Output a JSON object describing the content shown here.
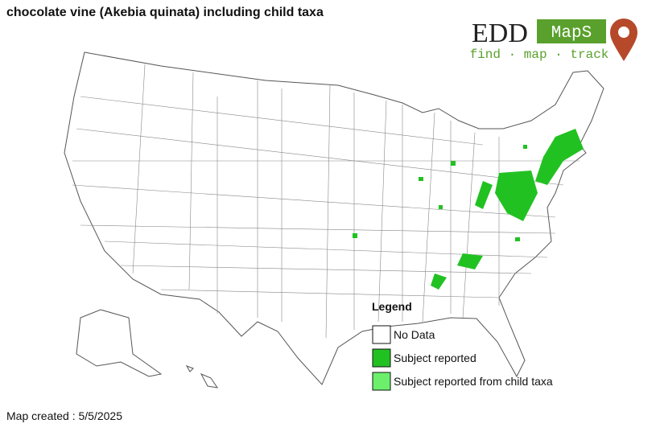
{
  "header": {
    "title": "chocolate vine (Akebia quinata) including child taxa"
  },
  "logo": {
    "name_left": "EDD",
    "name_right": "MapS",
    "tagline": "find · map · track"
  },
  "legend": {
    "title": "Legend",
    "items": [
      {
        "label": "No Data",
        "color": "#ffffff"
      },
      {
        "label": "Subject reported",
        "color": "#22c122"
      },
      {
        "label": "Subject reported from child taxa",
        "color": "#6cf06c"
      }
    ]
  },
  "footer": {
    "created": "Map created : 5/5/2025"
  }
}
